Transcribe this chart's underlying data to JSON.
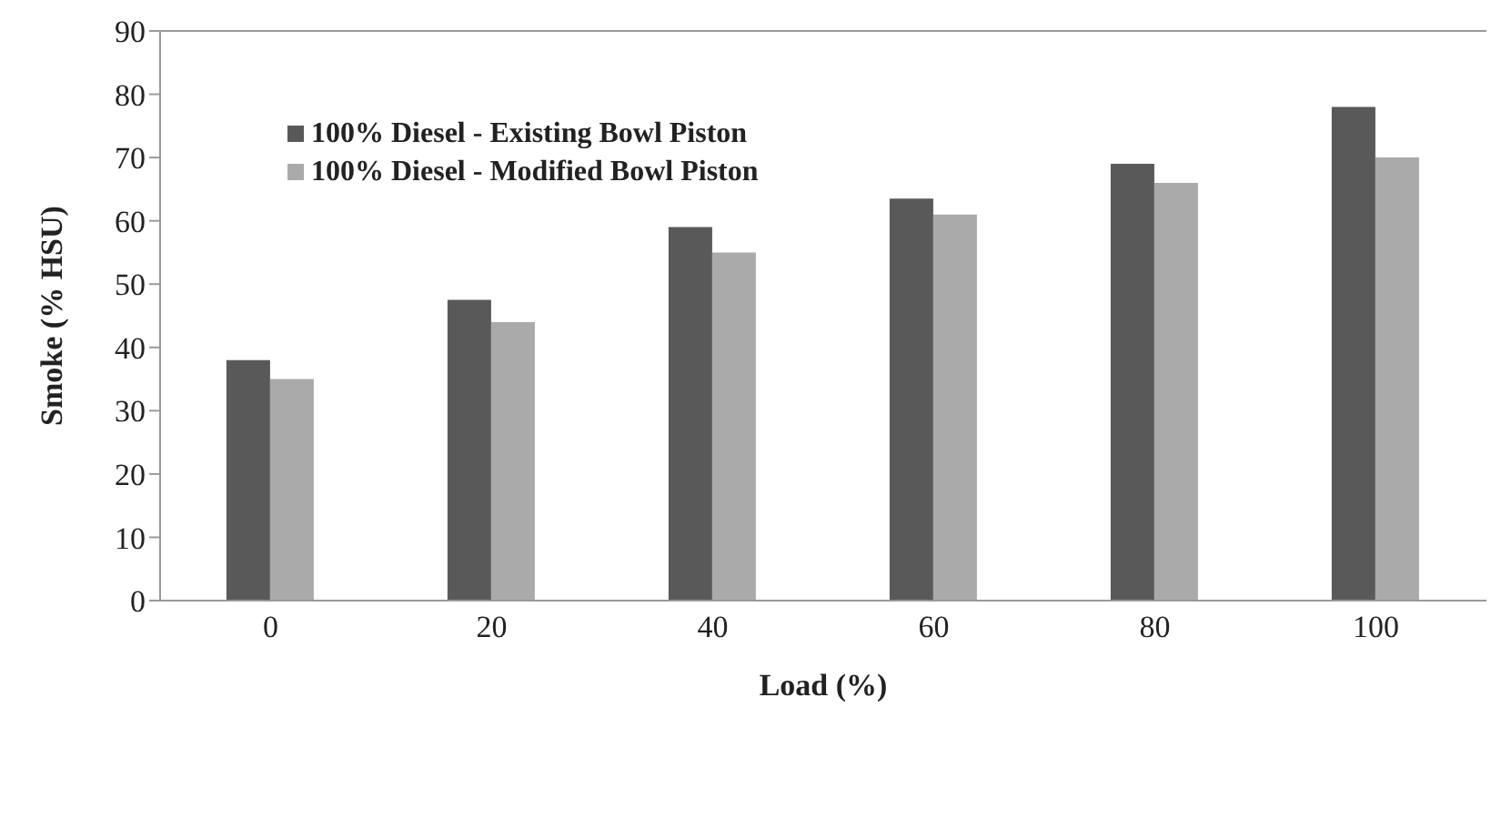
{
  "chart_data": {
    "type": "bar",
    "xlabel": "Load  (%)",
    "ylabel": "Smoke (% HSU)",
    "categories": [
      "0",
      "20",
      "40",
      "60",
      "80",
      "100"
    ],
    "series": [
      {
        "name": "100% Diesel - Existing Bowl Piston",
        "color": "#595959",
        "values": [
          38,
          47.5,
          59,
          63.5,
          69,
          78
        ]
      },
      {
        "name": "100% Diesel - Modified Bowl Piston",
        "color": "#aaaaaa",
        "values": [
          35,
          44,
          55,
          61,
          66,
          70
        ]
      }
    ],
    "ylim": [
      0,
      90
    ],
    "yticks": [
      0,
      10,
      20,
      30,
      40,
      50,
      60,
      70,
      80,
      90
    ],
    "grid": false,
    "legend": "top left"
  }
}
